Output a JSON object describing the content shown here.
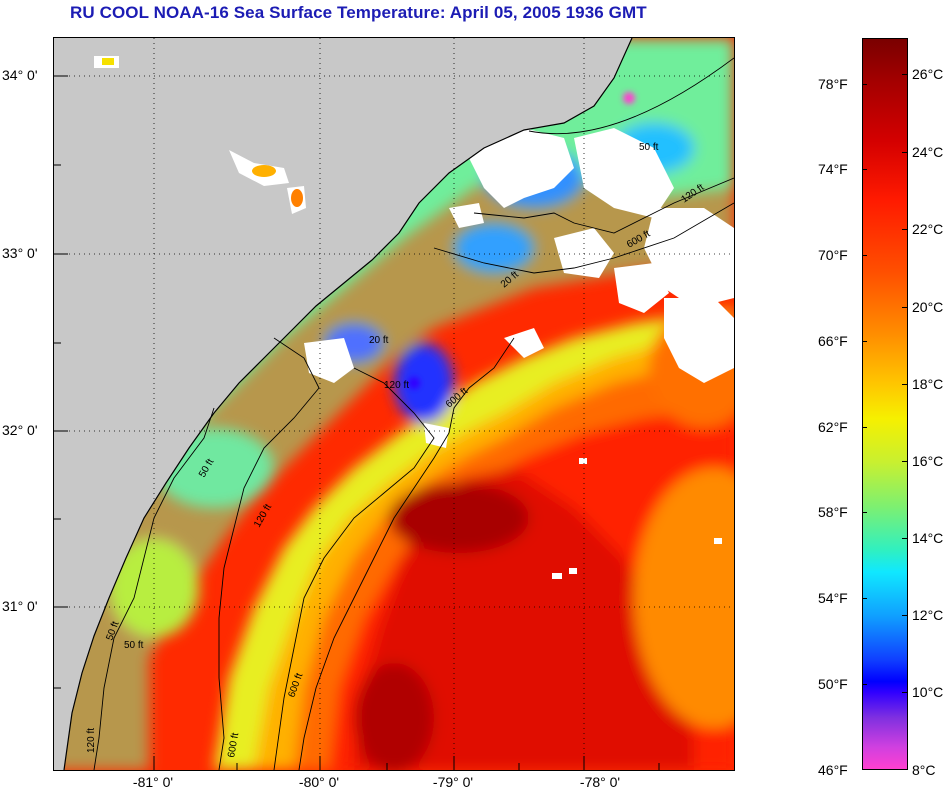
{
  "title": "RU COOL  NOAA-16  Sea Surface Temperature:  April 05, 2005 1936 GMT",
  "map": {
    "longitude_labels": [
      "-81° 0'",
      "-80° 0'",
      "-79° 0'",
      "-78° 0'"
    ],
    "latitude_labels": [
      "34° 0'",
      "33° 0'",
      "32° 0'",
      "31° 0'"
    ],
    "contour_labels": [
      "50 ft",
      "120 ft",
      "600 ft",
      "50 ft",
      "120 ft",
      "600 ft",
      "20 ft",
      "50 ft",
      "120 ft",
      "600 ft",
      "20 ft",
      "600 ft",
      "120 ft",
      "50 ft"
    ],
    "colors": {
      "land": "#c8c8c8",
      "cloud": "#ffffff",
      "coastline": "#000000"
    }
  },
  "colorbar": {
    "fahrenheit_labels": [
      "78°F",
      "74°F",
      "70°F",
      "66°F",
      "62°F",
      "58°F",
      "54°F",
      "50°F",
      "46°F"
    ],
    "celsius_labels": [
      "26°C",
      "24°C",
      "22°C",
      "20°C",
      "18°C",
      "16°C",
      "14°C",
      "12°C",
      "10°C",
      "8°C"
    ],
    "range_celsius": [
      8,
      27
    ]
  }
}
